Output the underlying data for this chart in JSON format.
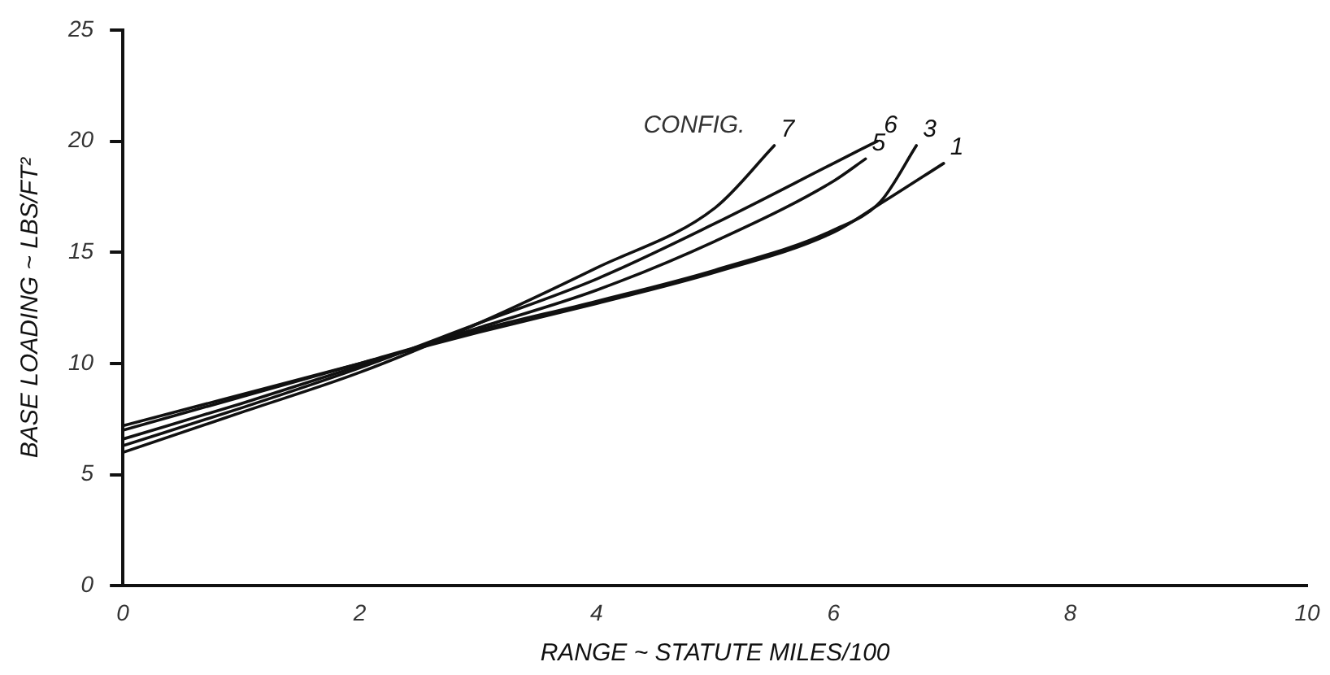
{
  "chart_data": {
    "type": "line",
    "xlabel": "RANGE ~ STATUTE MILES/100",
    "ylabel": "BASE LOADING ~ LBS/FT²",
    "annotations": [
      "CONFIG."
    ],
    "xlim": [
      0,
      10
    ],
    "xticks": [
      0,
      2,
      4,
      6,
      8,
      10
    ],
    "ylim": [
      0,
      25
    ],
    "yticks": [
      0,
      5,
      10,
      15,
      20,
      25
    ],
    "grid": false,
    "legend": false,
    "marker": "none",
    "line_style": "solid",
    "series": [
      {
        "name": "7",
        "color": "#111111",
        "x": [
          0,
          1,
          2,
          3,
          4,
          5,
          5.5
        ],
        "values": [
          6.0,
          7.8,
          9.6,
          11.8,
          14.3,
          17.0,
          19.8
        ]
      },
      {
        "name": "6",
        "color": "#111111",
        "x": [
          0,
          1,
          2,
          3,
          4,
          5,
          6,
          6.37
        ],
        "values": [
          6.3,
          8.0,
          9.8,
          11.8,
          13.8,
          16.3,
          19.0,
          20.0
        ]
      },
      {
        "name": "5",
        "color": "#111111",
        "x": [
          0,
          1,
          2,
          3,
          4,
          5,
          6,
          6.27
        ],
        "values": [
          6.6,
          8.2,
          9.9,
          11.6,
          13.3,
          15.5,
          18.2,
          19.2
        ]
      },
      {
        "name": "3",
        "color": "#111111",
        "x": [
          0,
          1,
          2,
          3,
          4,
          5,
          6,
          6.4,
          6.7
        ],
        "values": [
          7.0,
          8.5,
          10.0,
          11.5,
          12.8,
          14.2,
          16.0,
          17.3,
          19.8
        ]
      },
      {
        "name": "1",
        "color": "#111111",
        "x": [
          0,
          1,
          2,
          3,
          4,
          5,
          6,
          6.4,
          6.93
        ],
        "values": [
          7.2,
          8.6,
          10.0,
          11.4,
          12.7,
          14.1,
          15.9,
          17.2,
          19.0
        ]
      }
    ]
  }
}
